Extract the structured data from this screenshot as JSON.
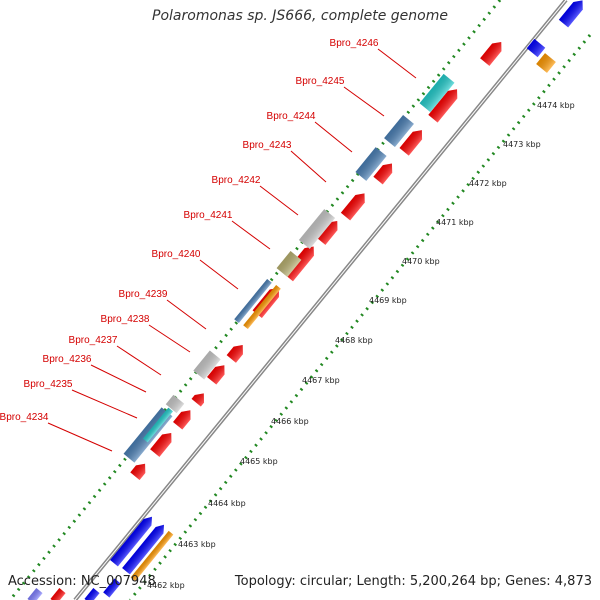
{
  "title": "Polaromonas sp. JS666, complete genome",
  "accession": "Accession: NC_007948",
  "topology": "Topology: circular; Length: 5,200,264 bp; Genes: 4,873",
  "colors": {
    "forward_cds": "#ff0000",
    "gene_blue": "#4a7fb5",
    "gene_cyan": "#22cccc",
    "gene_gray": "#c8c8c8",
    "gene_olive": "#b8b070",
    "gene_orange": "#ff9900",
    "rna_blue": "#0000ff",
    "backbone": "#888888",
    "gc_dots": "#228822",
    "label": "#d40000"
  },
  "gene_labels": [
    "Bpro_4246",
    "Bpro_4245",
    "Bpro_4244",
    "Bpro_4243",
    "Bpro_4242",
    "Bpro_4241",
    "Bpro_4240",
    "Bpro_4239",
    "Bpro_4238",
    "Bpro_4237",
    "Bpro_4236",
    "Bpro_4235",
    "Bpro_4234"
  ],
  "ticks": [
    "4474 kbp",
    "4473 kbp",
    "4472 kbp",
    "4471 kbp",
    "4470 kbp",
    "4469 kbp",
    "4468 kbp",
    "4467 kbp",
    "4466 kbp",
    "4465 kbp",
    "4464 kbp",
    "4463 kbp",
    "4462 kbp"
  ]
}
